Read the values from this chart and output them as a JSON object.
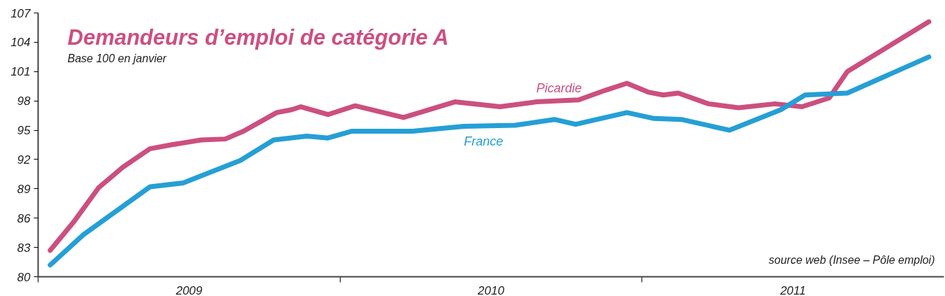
{
  "chart_data": {
    "type": "line",
    "title": "Demandeurs d’emploi de catégorie A",
    "subtitle": "Base 100 en janvier",
    "annotations": [
      "source web (Insee – Pôle emploi)"
    ],
    "series": [
      {
        "name": "Picardie",
        "color": "#cc4f80",
        "x": [
          2009.04,
          2009.12,
          2009.2,
          2009.28,
          2009.37,
          2009.44,
          2009.54,
          2009.62,
          2009.68,
          2009.79,
          2009.84,
          2009.87,
          2009.96,
          2010.05,
          2010.21,
          2010.38,
          2010.53,
          2010.65,
          2010.79,
          2010.88,
          2010.95,
          2011.02,
          2011.07,
          2011.12,
          2011.22,
          2011.32,
          2011.44,
          2011.53,
          2011.62,
          2011.68,
          2011.95
        ],
        "values": [
          82.7,
          85.7,
          89.1,
          91.2,
          93.1,
          93.5,
          94.0,
          94.1,
          94.9,
          96.8,
          97.1,
          97.4,
          96.6,
          97.5,
          96.3,
          97.9,
          97.4,
          97.9,
          98.1,
          99.1,
          99.8,
          98.9,
          98.6,
          98.8,
          97.7,
          97.3,
          97.7,
          97.4,
          98.3,
          101.0,
          106.1
        ]
      },
      {
        "name": "France",
        "color": "#259fd6",
        "x": [
          2009.04,
          2009.15,
          2009.37,
          2009.48,
          2009.67,
          2009.78,
          2009.89,
          2009.96,
          2010.04,
          2010.24,
          2010.41,
          2010.58,
          2010.71,
          2010.78,
          2010.95,
          2011.04,
          2011.13,
          2011.29,
          2011.46,
          2011.54,
          2011.68,
          2011.95
        ],
        "values": [
          81.2,
          84.3,
          89.2,
          89.6,
          91.9,
          94.0,
          94.4,
          94.2,
          94.9,
          94.9,
          95.4,
          95.5,
          96.1,
          95.6,
          96.8,
          96.2,
          96.1,
          95.0,
          97.1,
          98.6,
          98.8,
          102.5
        ]
      }
    ],
    "xlim": [
      2009,
      2012
    ],
    "ylim": [
      80,
      107
    ],
    "xticks": [
      {
        "value": 2009,
        "label": null
      },
      {
        "value": 2009.5,
        "label": "2009"
      },
      {
        "value": 2010,
        "label": null
      },
      {
        "value": 2010.5,
        "label": "2010"
      },
      {
        "value": 2011,
        "label": null
      },
      {
        "value": 2011.5,
        "label": "2011"
      }
    ],
    "yticks": [
      80,
      83,
      86,
      89,
      92,
      95,
      98,
      101,
      104,
      107
    ],
    "grid": false,
    "legend": false,
    "marker": "none",
    "line_style": "solid"
  }
}
